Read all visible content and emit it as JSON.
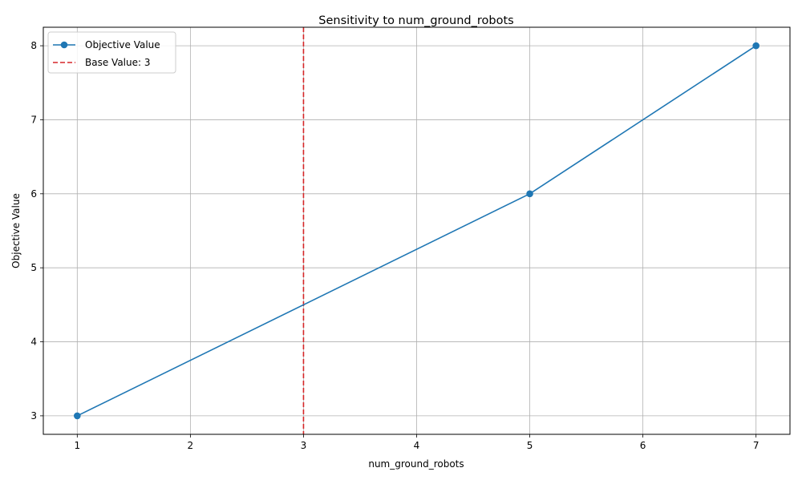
{
  "chart_data": {
    "type": "line",
    "title": "Sensitivity to num_ground_robots",
    "xlabel": "num_ground_robots",
    "ylabel": "Objective Value",
    "xlim": [
      0.7,
      7.3
    ],
    "ylim": [
      2.75,
      8.25
    ],
    "xticks": [
      1,
      2,
      3,
      4,
      5,
      6,
      7
    ],
    "yticks": [
      3,
      4,
      5,
      6,
      7,
      8
    ],
    "grid": true,
    "legend_position": "top-left",
    "series": [
      {
        "name": "Objective Value",
        "color": "#1f77b4",
        "marker": "circle",
        "x": [
          1,
          5,
          7
        ],
        "y": [
          3,
          6,
          8
        ]
      }
    ],
    "reference_lines": [
      {
        "name": "Base Value: 3",
        "orientation": "vertical",
        "value": 3,
        "color": "#d62728",
        "style": "dashed"
      }
    ]
  }
}
